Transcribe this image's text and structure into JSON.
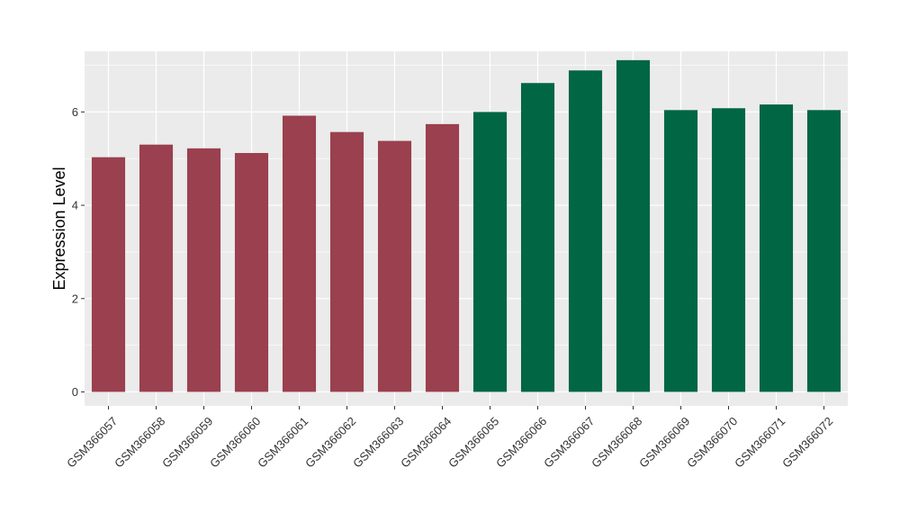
{
  "chart_data": {
    "type": "bar",
    "title": "",
    "xlabel": "",
    "ylabel": "Expression Level",
    "ylim": [
      -0.3,
      7.3
    ],
    "yticks": [
      0,
      2,
      4,
      6
    ],
    "grid": true,
    "legend": "none",
    "categories": [
      "GSM366057",
      "GSM366058",
      "GSM366059",
      "GSM366060",
      "GSM366061",
      "GSM366062",
      "GSM366063",
      "GSM366064",
      "GSM366065",
      "GSM366066",
      "GSM366067",
      "GSM366068",
      "GSM366069",
      "GSM366070",
      "GSM366071",
      "GSM366072"
    ],
    "values": [
      5.03,
      5.3,
      5.22,
      5.12,
      5.92,
      5.57,
      5.38,
      5.74,
      6.0,
      6.62,
      6.89,
      7.11,
      6.04,
      6.08,
      6.16,
      6.04
    ],
    "colors": [
      "#9A404E",
      "#9A404E",
      "#9A404E",
      "#9A404E",
      "#9A404E",
      "#9A404E",
      "#9A404E",
      "#9A404E",
      "#006644",
      "#006644",
      "#006644",
      "#006644",
      "#006644",
      "#006644",
      "#006644",
      "#006644"
    ],
    "panel_background": "#EBEBEB",
    "grid_color": "#FFFFFF"
  }
}
